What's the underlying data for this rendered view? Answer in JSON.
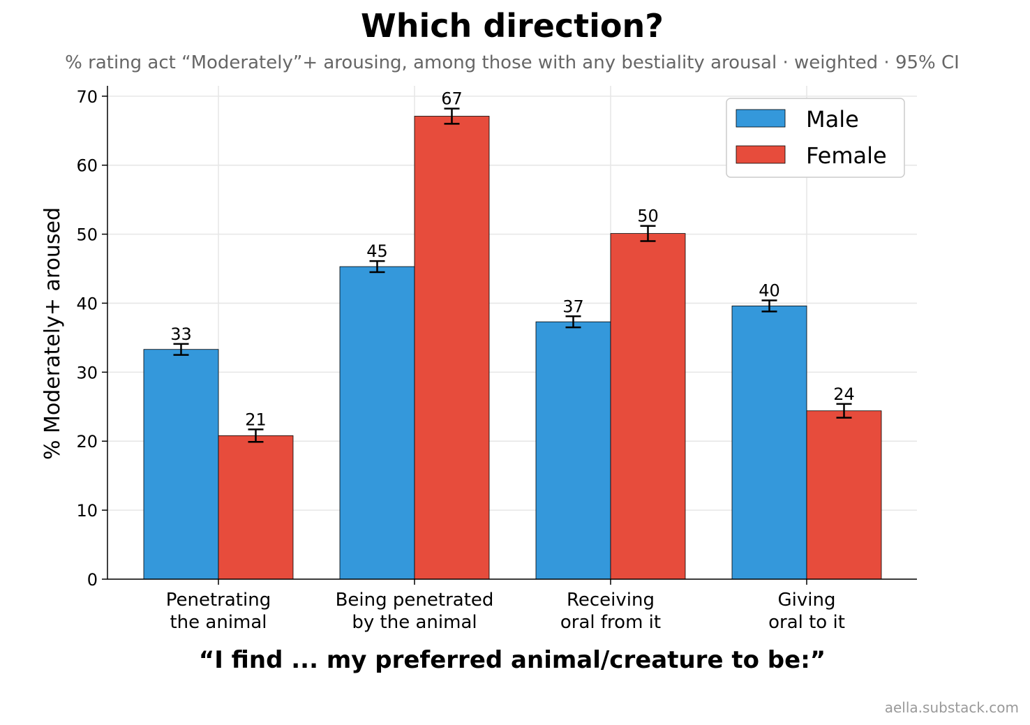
{
  "chart_data": {
    "type": "bar",
    "title": "Which direction?",
    "subtitle": "% rating act “Moderately”+ arousing, among those with any bestiality arousal · weighted · 95% CI",
    "xlabel": "“I find ... my preferred animal/creature to be:”",
    "ylabel": "% Moderately+ aroused",
    "categories": [
      [
        "Penetrating",
        "the animal"
      ],
      [
        "Being penetrated",
        "by the animal"
      ],
      [
        "Receiving",
        "oral from it"
      ],
      [
        "Giving",
        "oral to it"
      ]
    ],
    "series": [
      {
        "name": "Male",
        "color": "#3498db",
        "values": [
          33.3,
          45.3,
          37.3,
          39.6
        ],
        "ci_low": [
          32.5,
          44.5,
          36.5,
          38.8
        ],
        "ci_high": [
          34.1,
          46.1,
          38.1,
          40.4
        ],
        "labels": [
          "33",
          "45",
          "37",
          "40"
        ]
      },
      {
        "name": "Female",
        "color": "#e74c3c",
        "values": [
          20.8,
          67.1,
          50.1,
          24.4
        ],
        "ci_low": [
          19.9,
          66.0,
          49.0,
          23.4
        ],
        "ci_high": [
          21.7,
          68.2,
          51.2,
          25.4
        ],
        "labels": [
          "21",
          "67",
          "50",
          "24"
        ]
      }
    ],
    "ylim": [
      0,
      71.5
    ],
    "yticks": [
      0,
      10,
      20,
      30,
      40,
      50,
      60,
      70
    ],
    "grid": true,
    "legend_position": "top-right"
  },
  "credit": "aella.substack.com"
}
